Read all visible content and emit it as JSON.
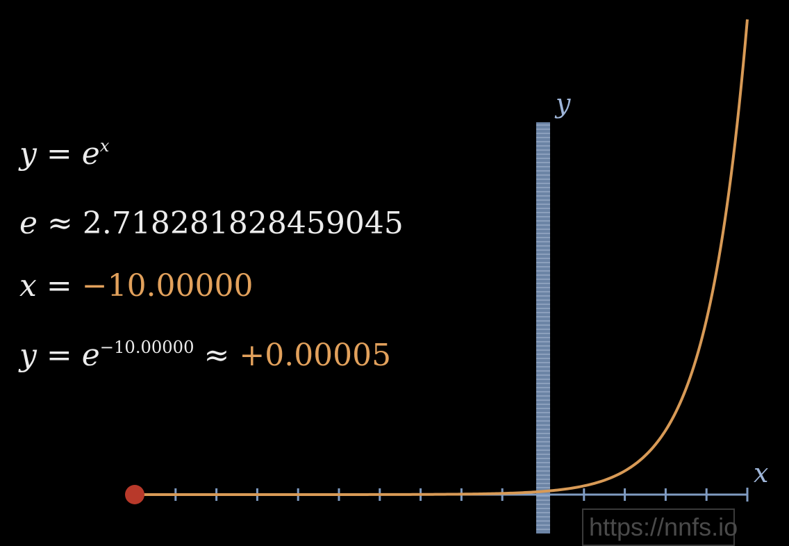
{
  "equations": {
    "line1": {
      "lhs": "y",
      "eq": "=",
      "base": "e",
      "exp": "x"
    },
    "line2": {
      "lhs": "e",
      "approx": "≈",
      "value": "2.718281828459045"
    },
    "line3": {
      "lhs": "x",
      "eq": "=",
      "value": "−10.00000"
    },
    "line4": {
      "lhs": "y",
      "eq": "=",
      "base": "e",
      "exp": "−10.00000",
      "approx": "≈",
      "value": "+0.00005"
    }
  },
  "chart_data": {
    "type": "line",
    "function": "y = e^x",
    "xlabel": "x",
    "ylabel": "y",
    "xlim": [
      -10,
      5
    ],
    "ylim": [
      0,
      148.4
    ],
    "x_ticks": [
      -9,
      -8,
      -7,
      -6,
      -5,
      -4,
      -3,
      -2,
      -1,
      1,
      2,
      3,
      4,
      5
    ],
    "x": [
      -10,
      -9,
      -8,
      -7,
      -6,
      -5,
      -4,
      -3,
      -2,
      -1,
      0,
      1,
      2,
      3,
      4,
      4.5,
      5
    ],
    "y": [
      5e-05,
      0.0001,
      0.0003,
      0.0009,
      0.0025,
      0.0067,
      0.018,
      0.05,
      0.135,
      0.368,
      1,
      2.718,
      7.389,
      20.09,
      54.6,
      90.0,
      148.4
    ],
    "marker": {
      "x": -10,
      "y": 5e-05
    },
    "colors": {
      "curve": "#d89a56",
      "axis": "#7f9bc2",
      "marker": "#b8392a"
    }
  },
  "watermark": "https://nnfs.io"
}
